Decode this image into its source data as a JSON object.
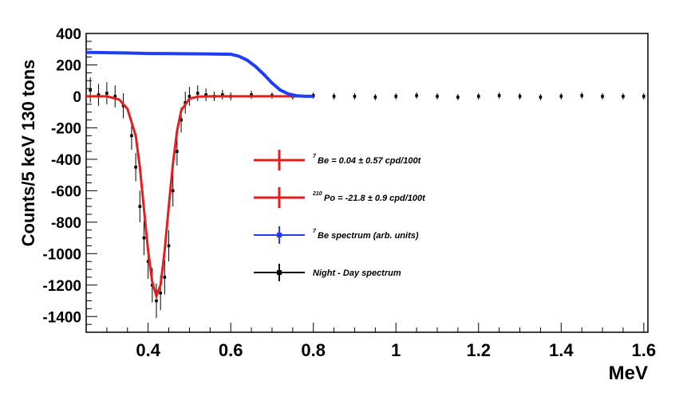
{
  "chart_data": {
    "type": "scatter",
    "title": "",
    "xlabel": "MeV",
    "ylabel": "Counts/5 keV 130 tons",
    "xlim": [
      0.25,
      1.61
    ],
    "ylim": [
      -1500,
      400
    ],
    "xticks": [
      0.4,
      0.6,
      0.8,
      1,
      1.2,
      1.4,
      1.6
    ],
    "xtick_labels": [
      "0.4",
      "0.6",
      "0.8",
      "1",
      "1.2",
      "1.4",
      "1.6"
    ],
    "yticks": [
      400,
      200,
      0,
      -200,
      -400,
      -600,
      -800,
      -1000,
      -1200,
      -1400
    ],
    "ytick_labels": [
      "400",
      "200",
      "0",
      "-200",
      "-400",
      "-600",
      "-800",
      "-1000",
      "-1200",
      "-1400"
    ],
    "grid": false,
    "legend_position": "center-right",
    "legend": [
      {
        "superscript": "7",
        "text": "Be   = 0.04 ± 0.57 cpd/100t",
        "color": "#e41e1e"
      },
      {
        "superscript": "210",
        "text": "Po = -21.8 ± 0.9 cpd/100t",
        "color": "#e41e1e"
      },
      {
        "superscript": "7",
        "text": "Be spectrum (arb. units)",
        "color": "#1f3df2"
      },
      {
        "superscript": "",
        "text": "Night - Day spectrum",
        "color": "#000000"
      }
    ],
    "series": [
      {
        "name": "Night - Day spectrum",
        "kind": "points_with_errors",
        "color": "#000000",
        "x": [
          0.26,
          0.28,
          0.3,
          0.32,
          0.34,
          0.36,
          0.37,
          0.38,
          0.39,
          0.4,
          0.41,
          0.42,
          0.43,
          0.44,
          0.45,
          0.46,
          0.47,
          0.48,
          0.49,
          0.5,
          0.52,
          0.54,
          0.56,
          0.58,
          0.6,
          0.65,
          0.7,
          0.75,
          0.8,
          0.85,
          0.9,
          0.95,
          1.0,
          1.05,
          1.1,
          1.15,
          1.2,
          1.25,
          1.3,
          1.35,
          1.4,
          1.45,
          1.5,
          1.55,
          1.6
        ],
        "y": [
          40,
          10,
          20,
          0,
          -60,
          -250,
          -450,
          -700,
          -900,
          -1050,
          -1200,
          -1300,
          -1250,
          -1150,
          -950,
          -600,
          -350,
          -150,
          -40,
          0,
          20,
          10,
          0,
          10,
          0,
          10,
          5,
          0,
          5,
          0,
          0,
          -5,
          0,
          5,
          0,
          -5,
          0,
          5,
          0,
          -5,
          0,
          5,
          0,
          0,
          0
        ],
        "err": [
          80,
          70,
          70,
          70,
          80,
          90,
          90,
          100,
          110,
          110,
          110,
          110,
          110,
          110,
          100,
          100,
          90,
          80,
          70,
          60,
          50,
          40,
          30,
          30,
          25,
          25,
          20,
          20,
          20,
          20,
          20,
          20,
          20,
          20,
          20,
          20,
          20,
          20,
          20,
          20,
          20,
          20,
          20,
          20,
          20
        ]
      },
      {
        "name": "210Po fit",
        "kind": "line",
        "color": "#e41e1e",
        "x": [
          0.25,
          0.3,
          0.33,
          0.35,
          0.37,
          0.38,
          0.39,
          0.4,
          0.41,
          0.42,
          0.43,
          0.44,
          0.45,
          0.46,
          0.47,
          0.48,
          0.5,
          0.52,
          0.55,
          0.6,
          0.7,
          0.8
        ],
        "y": [
          0,
          0,
          -20,
          -80,
          -250,
          -450,
          -720,
          -980,
          -1180,
          -1270,
          -1200,
          -980,
          -700,
          -430,
          -220,
          -90,
          -15,
          -2,
          0,
          0,
          0,
          0
        ]
      },
      {
        "name": "7Be spectrum (arb. units)",
        "kind": "line",
        "color": "#1f3df2",
        "x": [
          0.25,
          0.3,
          0.35,
          0.4,
          0.45,
          0.5,
          0.55,
          0.6,
          0.62,
          0.64,
          0.66,
          0.68,
          0.7,
          0.72,
          0.74,
          0.76,
          0.78,
          0.8
        ],
        "y": [
          280,
          278,
          276,
          273,
          272,
          271,
          270,
          268,
          255,
          230,
          190,
          140,
          85,
          40,
          15,
          4,
          1,
          0
        ]
      }
    ]
  }
}
